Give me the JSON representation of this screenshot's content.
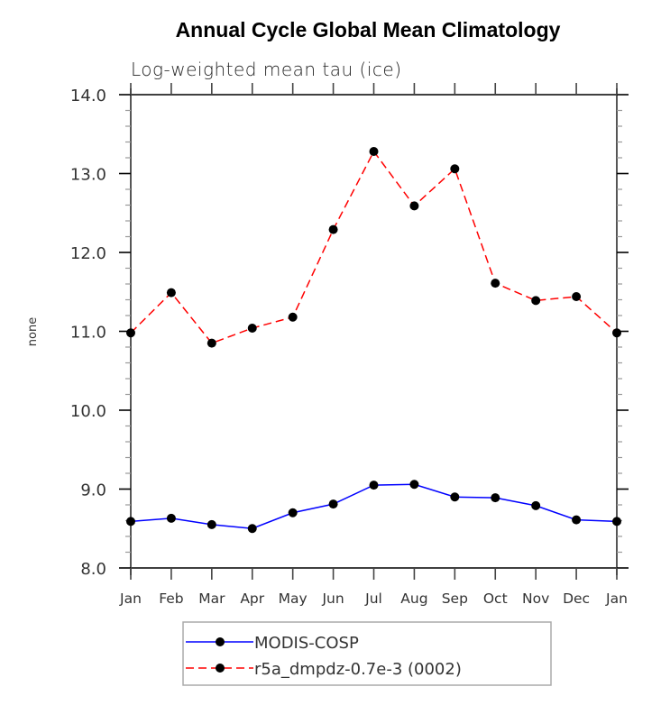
{
  "chart_data": {
    "type": "line",
    "title": "Annual Cycle Global Mean Climatology",
    "subtitle": "Log-weighted mean tau (ice)",
    "xlabel": "",
    "ylabel": "none",
    "categories": [
      "Jan",
      "Feb",
      "Mar",
      "Apr",
      "May",
      "Jun",
      "Jul",
      "Aug",
      "Sep",
      "Oct",
      "Nov",
      "Dec",
      "Jan"
    ],
    "ylim": [
      8.0,
      14.0
    ],
    "yticks": [
      8.0,
      9.0,
      10.0,
      11.0,
      12.0,
      13.0,
      14.0
    ],
    "ytick_labels": [
      "8.0",
      "9.0",
      "10.0",
      "11.0",
      "12.0",
      "13.0",
      "14.0"
    ],
    "y_minor_step": 0.2,
    "grid": false,
    "legend_position": "bottom-center",
    "series": [
      {
        "name": "MODIS-COSP",
        "color": "#0000ff",
        "dash": "solid",
        "marker": "filled-circle",
        "values": [
          8.59,
          8.63,
          8.55,
          8.5,
          8.7,
          8.81,
          9.05,
          9.06,
          8.9,
          8.89,
          8.79,
          8.61,
          8.59
        ]
      },
      {
        "name": "r5a_dmpdz-0.7e-3 (0002)",
        "color": "#ff0000",
        "dash": "dashed",
        "marker": "filled-circle",
        "values": [
          10.98,
          11.49,
          10.85,
          11.04,
          11.18,
          12.29,
          13.28,
          12.59,
          13.06,
          11.61,
          11.39,
          11.44,
          10.98
        ]
      }
    ]
  }
}
